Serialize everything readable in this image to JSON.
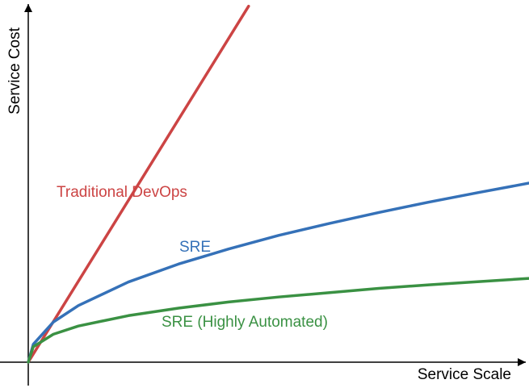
{
  "chart_data": {
    "type": "line",
    "x_label": "Service Scale",
    "y_label": "Service Cost",
    "xlim": [
      0,
      100
    ],
    "ylim": [
      0,
      100
    ],
    "series": [
      {
        "name": "Traditional DevOps",
        "color": "#cc4444",
        "x": [
          0,
          44
        ],
        "values": [
          0,
          99.4
        ]
      },
      {
        "name": "SRE",
        "color": "#3571b8",
        "x": [
          0,
          1,
          5,
          10,
          20,
          30,
          40,
          50,
          60,
          70,
          80,
          90,
          100
        ],
        "values": [
          0,
          5,
          11.2,
          15.8,
          22.4,
          27.4,
          31.6,
          35.4,
          38.7,
          41.8,
          44.7,
          47.4,
          50
        ]
      },
      {
        "name": "SRE (Highly Automated)",
        "color": "#3a9143",
        "x": [
          0,
          1,
          5,
          10,
          20,
          30,
          40,
          50,
          60,
          70,
          80,
          90,
          100
        ],
        "values": [
          0,
          4.3,
          7.8,
          10.1,
          13.0,
          15.1,
          16.8,
          18.2,
          19.4,
          20.6,
          21.6,
          22.5,
          23.4
        ]
      }
    ]
  }
}
